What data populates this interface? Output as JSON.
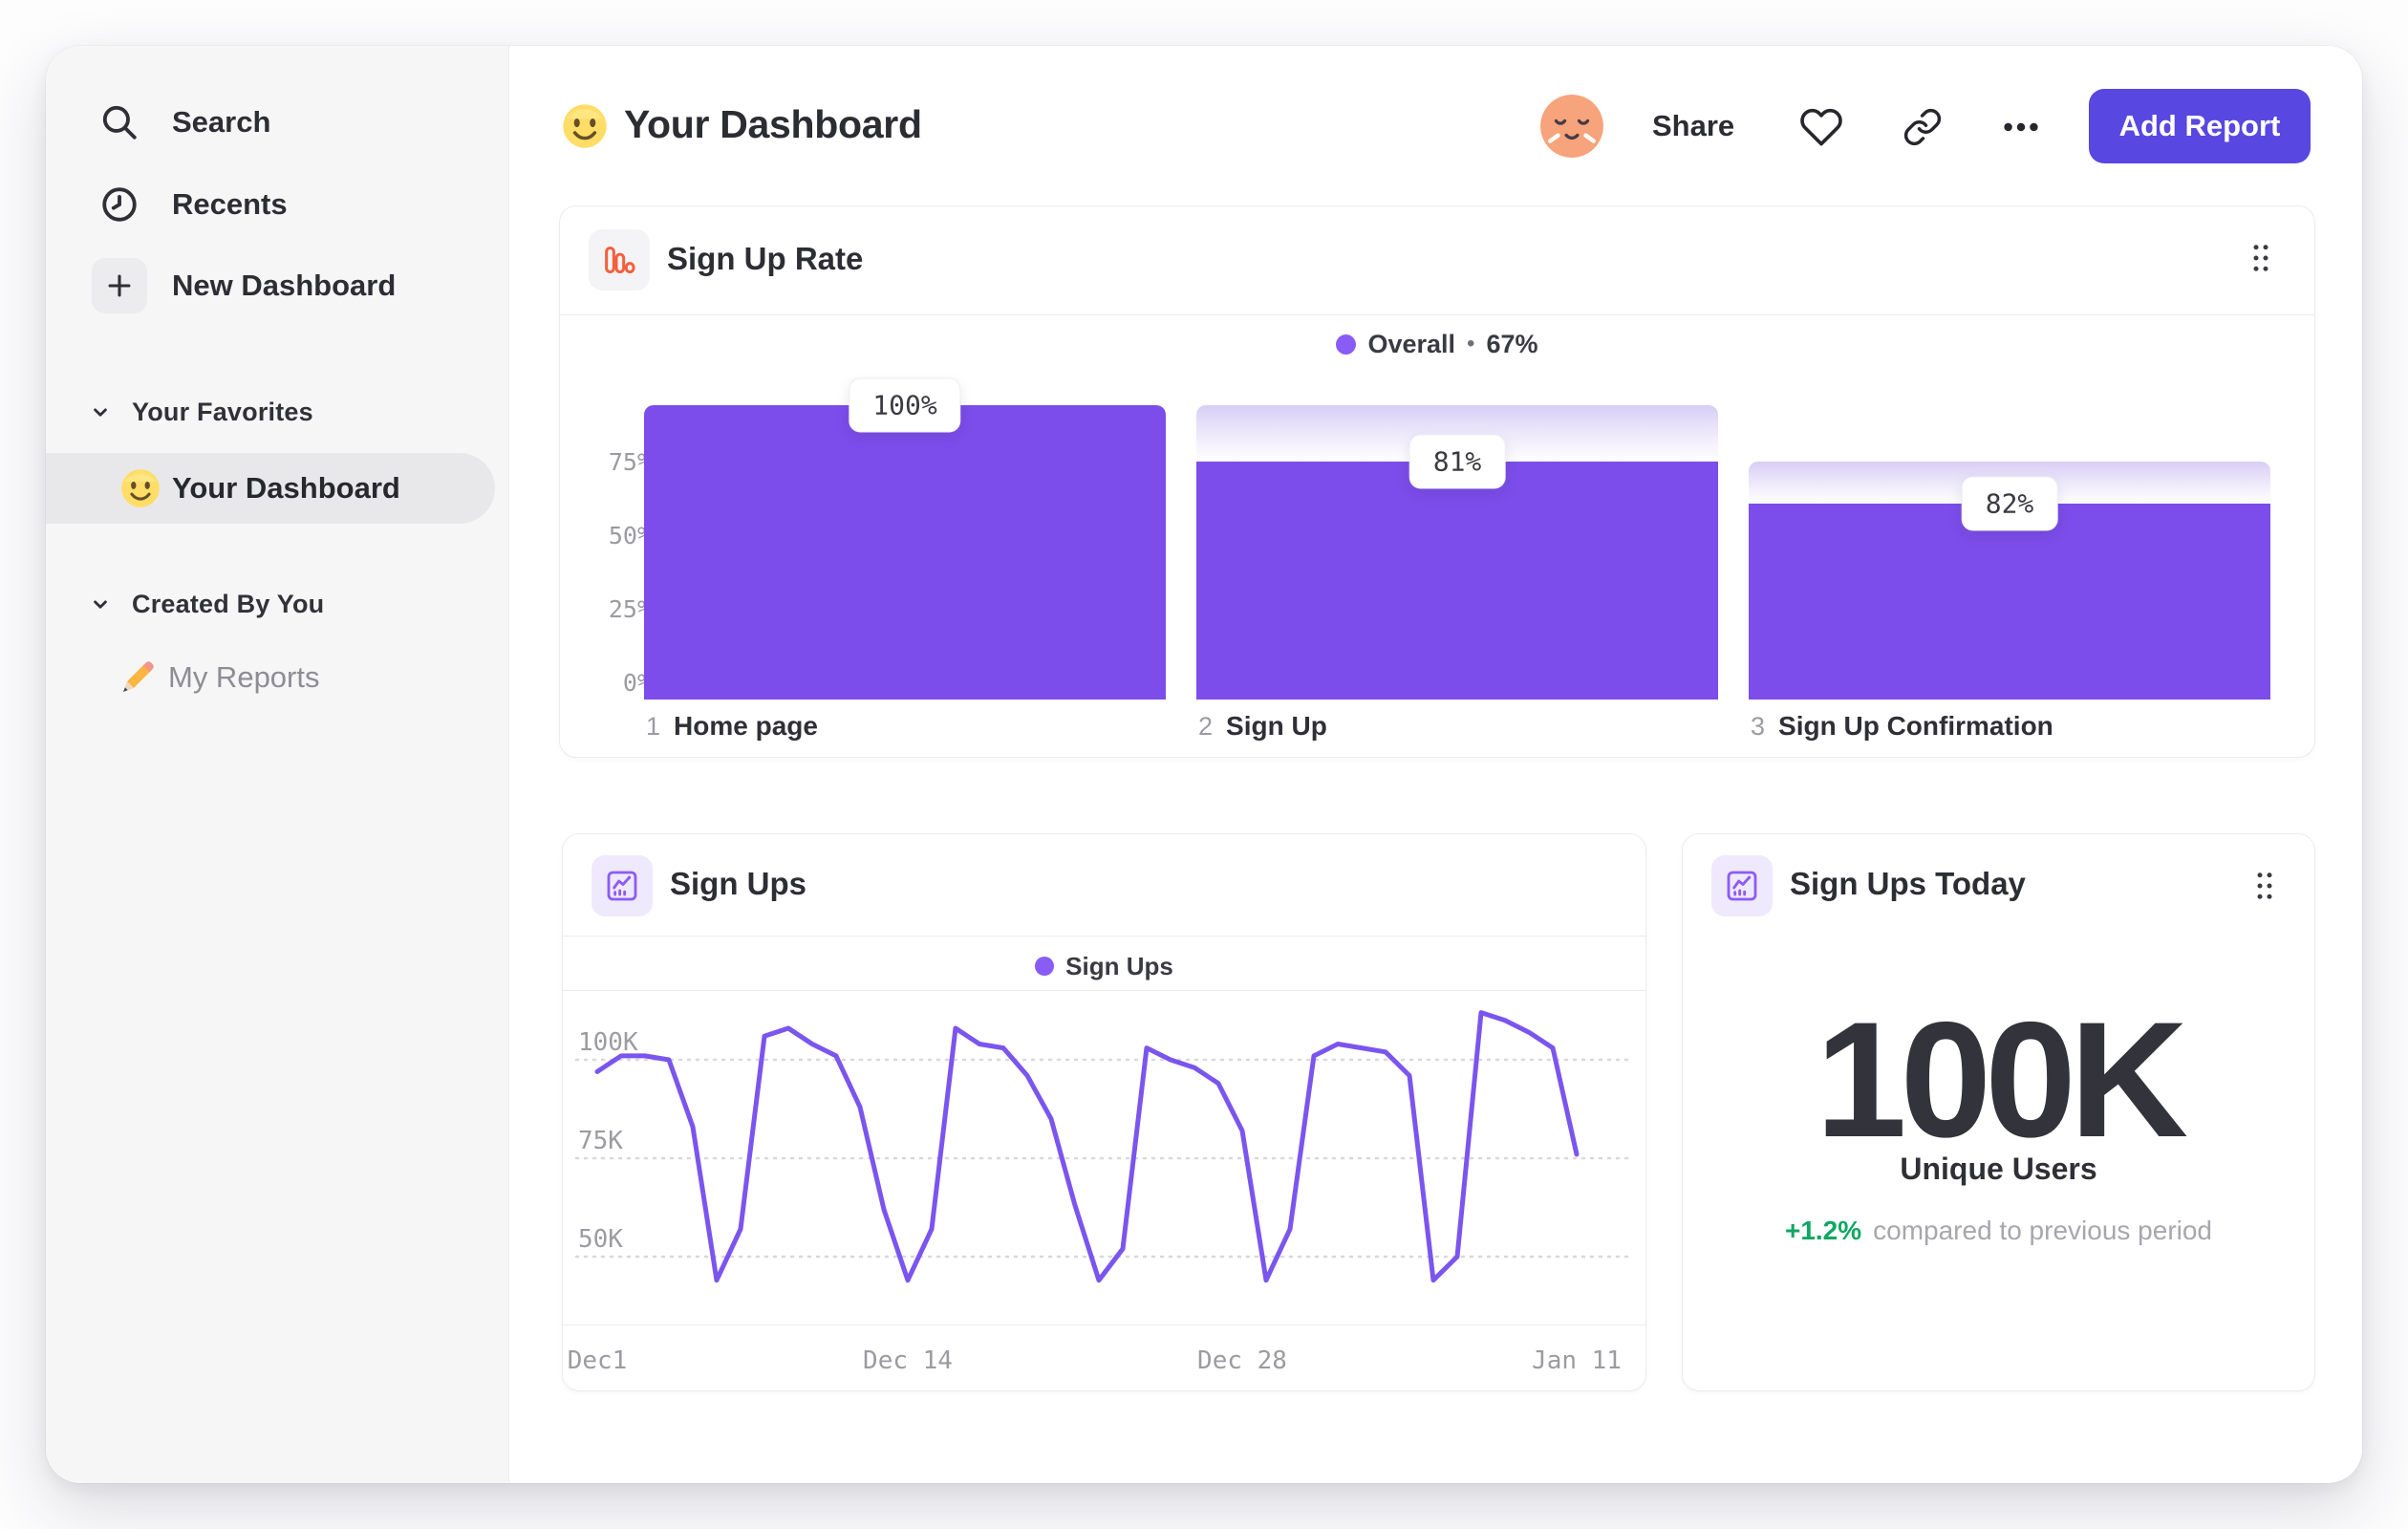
{
  "sidebar": {
    "items": [
      {
        "icon": "search-icon",
        "label": "Search"
      },
      {
        "icon": "recents-clock-icon",
        "label": "Recents"
      },
      {
        "icon": "plus-icon",
        "label": "New Dashboard"
      }
    ],
    "sections": [
      {
        "title": "Your Favorites",
        "items": [
          {
            "icon": "smiley-emoji",
            "label": "Your Dashboard",
            "selected": true
          }
        ]
      },
      {
        "title": "Created By You",
        "items": [
          {
            "icon": "pencil-emoji",
            "label": "My Reports",
            "selected": false
          }
        ]
      }
    ]
  },
  "header": {
    "title_emoji": "smiley-emoji",
    "title": "Your Dashboard",
    "share_label": "Share",
    "add_report_label": "Add Report"
  },
  "cards": {
    "funnel": {
      "title": "Sign Up Rate",
      "legend": {
        "label": "Overall",
        "separator": "•",
        "value": "67%"
      }
    },
    "line": {
      "title": "Sign Ups",
      "legend": {
        "label": "Sign Ups"
      }
    },
    "stat": {
      "title": "Sign Ups Today",
      "value": "100K",
      "label": "Unique Users",
      "delta": "+1.2%",
      "delta_caption": "compared to previous period"
    }
  },
  "colors": {
    "accent_purple": "#7c4dea",
    "legend_dot": "#8a5cf6",
    "line_stroke": "#7a55ee",
    "button": "#5847e1",
    "green_delta": "#0fa763",
    "funnel_icon_orange": "#f2603d",
    "gray_tick": "#9b9ba2"
  },
  "chart_data": [
    {
      "type": "bar",
      "subtype": "funnel",
      "title": "Sign Up Rate",
      "overall_conversion_pct": 67,
      "ylim": [
        0,
        100
      ],
      "y_ticks_pct": [
        75,
        50,
        25,
        0
      ],
      "y_tick_labels": [
        "75%",
        "50%",
        "25%",
        "0%"
      ],
      "grid": false,
      "legend_position": "top-center",
      "steps": [
        {
          "n": "1",
          "name": "Home page",
          "label": "100%",
          "height_pct": 100,
          "ghost_from_pct": 100
        },
        {
          "n": "2",
          "name": "Sign Up",
          "label": "81%",
          "height_pct": 81,
          "ghost_from_pct": 100
        },
        {
          "n": "3",
          "name": "Sign Up Confirmation",
          "label": "82%",
          "height_pct": 66.4,
          "ghost_from_pct": 81
        }
      ]
    },
    {
      "type": "line",
      "title": "Sign Ups",
      "series_name": "Sign Ups",
      "unit": "K users/day",
      "ylim_k": [
        32,
        117
      ],
      "y_grid_k": [
        100,
        75,
        50
      ],
      "y_tick_labels": [
        "100K",
        "75K",
        "50K"
      ],
      "x_tick_labels": [
        "Dec1",
        "Dec 14",
        "Dec 28",
        "Jan 11"
      ],
      "x_tick_day_index": [
        0,
        13,
        27,
        41
      ],
      "grid": "dotted-horizontal",
      "legend_position": "top-center",
      "values_k": [
        97,
        101,
        101,
        100,
        83,
        44,
        57,
        106,
        108,
        104,
        101,
        88,
        62,
        44,
        57,
        108,
        104,
        103,
        96,
        85,
        63,
        44,
        52,
        103,
        100,
        98,
        94,
        82,
        44,
        57,
        101,
        104,
        103,
        102,
        96,
        44,
        50,
        112,
        110,
        107,
        103,
        76
      ]
    },
    {
      "type": "stat",
      "title": "Sign Ups Today",
      "value": "100K",
      "metric": "Unique Users",
      "delta_pct": "+1.2%",
      "comparison": "compared to previous period"
    }
  ]
}
